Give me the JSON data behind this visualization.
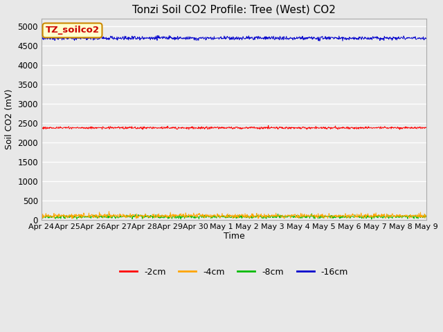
{
  "title": "Tonzi Soil CO2 Profile: Tree (West) CO2",
  "ylabel": "Soil CO2 (mV)",
  "xlabel": "Time",
  "label_box_text": "TZ_soilco2",
  "x_tick_labels": [
    "Apr 24",
    "Apr 25",
    "Apr 26",
    "Apr 27",
    "Apr 28",
    "Apr 29",
    "Apr 30",
    "May 1",
    "May 2",
    "May 3",
    "May 4",
    "May 5",
    "May 6",
    "May 7",
    "May 8",
    "May 9"
  ],
  "ylim": [
    0,
    5200
  ],
  "yticks": [
    0,
    500,
    1000,
    1500,
    2000,
    2500,
    3000,
    3500,
    4000,
    4500,
    5000
  ],
  "series": {
    "-2cm": {
      "color": "#ff0000",
      "mean": 2380,
      "noise": 15,
      "label": "-2cm"
    },
    "-4cm": {
      "color": "#ffa500",
      "mean": 105,
      "noise": 28,
      "label": "-4cm"
    },
    "-8cm": {
      "color": "#00bb00",
      "mean": 80,
      "noise": 22,
      "label": "-8cm"
    },
    "-16cm": {
      "color": "#0000cc",
      "mean": 4700,
      "noise": 25,
      "label": "-16cm"
    }
  },
  "n_points": 960,
  "fig_bg_color": "#e8e8e8",
  "plot_bg_color": "#ebebeb",
  "grid_color": "#ffffff",
  "title_fontsize": 11,
  "label_fontsize": 9,
  "tick_fontsize": 8.5
}
